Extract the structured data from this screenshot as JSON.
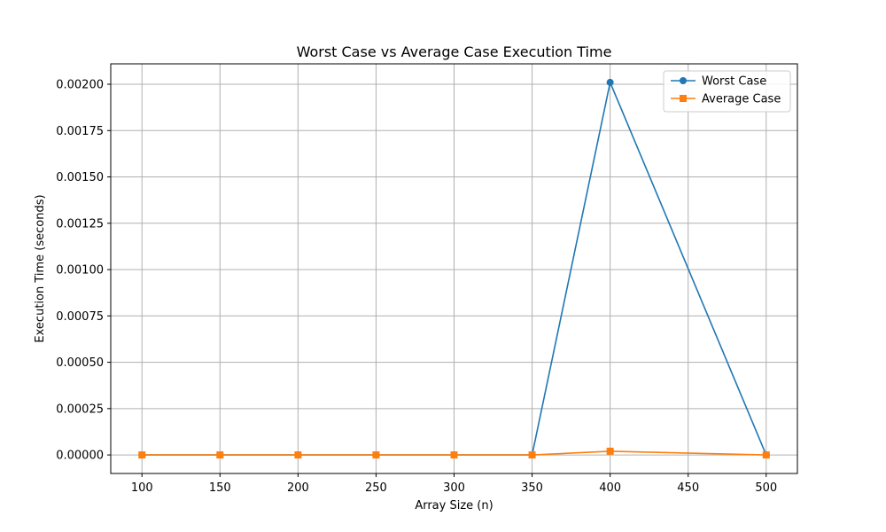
{
  "chart_data": {
    "type": "line",
    "title": "Worst Case vs Average Case Execution Time",
    "xlabel": "Array Size (n)",
    "ylabel": "Execution Time (seconds)",
    "x": [
      100,
      150,
      200,
      250,
      300,
      350,
      400,
      500
    ],
    "xticks": [
      100,
      150,
      200,
      250,
      300,
      350,
      400,
      450,
      500
    ],
    "xtick_labels": [
      "100",
      "150",
      "200",
      "250",
      "300",
      "350",
      "400",
      "450",
      "500"
    ],
    "yticks": [
      0,
      0.00025,
      0.0005,
      0.00075,
      0.001,
      0.00125,
      0.0015,
      0.00175,
      0.002
    ],
    "ytick_labels": [
      "0.00000",
      "0.00025",
      "0.00050",
      "0.00075",
      "0.00100",
      "0.00125",
      "0.00150",
      "0.00175",
      "0.00200"
    ],
    "xlim": [
      80,
      520
    ],
    "ylim": [
      -0.0001,
      0.00211
    ],
    "grid": true,
    "legend_position": "top-right",
    "series": [
      {
        "name": "Worst Case",
        "color": "#1f77b4",
        "marker": "circle",
        "values": [
          0.0,
          0.0,
          0.0,
          0.0,
          0.0,
          0.0,
          0.00201,
          0.0
        ]
      },
      {
        "name": "Average Case",
        "color": "#ff7f0e",
        "marker": "square",
        "values": [
          0.0,
          0.0,
          0.0,
          0.0,
          0.0,
          0.0,
          2e-05,
          0.0
        ]
      }
    ]
  }
}
